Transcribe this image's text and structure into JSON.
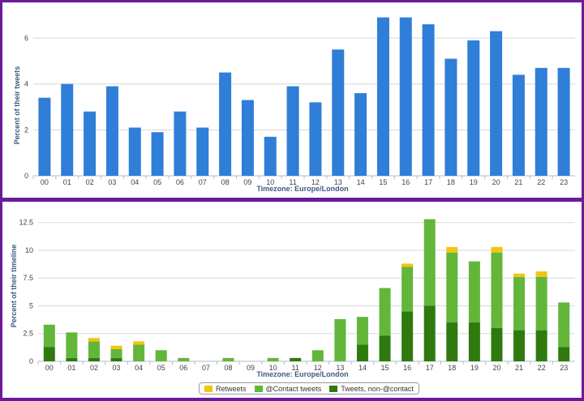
{
  "chart_data": [
    {
      "type": "bar",
      "ylabel": "Percent of their tweets",
      "xlabel": "Timezone: Europe/London",
      "categories": [
        "00",
        "01",
        "02",
        "03",
        "04",
        "05",
        "06",
        "07",
        "08",
        "09",
        "10",
        "11",
        "12",
        "13",
        "14",
        "15",
        "16",
        "17",
        "18",
        "19",
        "20",
        "21",
        "22",
        "23"
      ],
      "values": [
        3.4,
        4.0,
        2.8,
        3.9,
        2.1,
        1.9,
        2.8,
        2.1,
        4.5,
        3.3,
        1.7,
        3.9,
        3.2,
        5.5,
        3.6,
        6.9,
        6.9,
        6.6,
        5.1,
        5.9,
        6.3,
        4.4,
        4.7,
        4.7
      ],
      "ylim": [
        0,
        7.2
      ],
      "yticks": [
        0,
        2,
        4,
        6
      ],
      "color": "#2f7ed8",
      "grid": true
    },
    {
      "type": "bar",
      "stacked": true,
      "ylabel": "Percent of their timeline",
      "xlabel": "Timezone: Europe/London",
      "categories": [
        "00",
        "01",
        "02",
        "03",
        "04",
        "05",
        "06",
        "07",
        "08",
        "09",
        "10",
        "11",
        "12",
        "13",
        "14",
        "15",
        "16",
        "17",
        "18",
        "19",
        "20",
        "21",
        "22",
        "23"
      ],
      "series": [
        {
          "name": "Tweets, non-@contact",
          "color": "#2e7a0f",
          "values": [
            1.3,
            0.3,
            0.3,
            0.3,
            0,
            0,
            0,
            0,
            0,
            0,
            0,
            0.3,
            0,
            0,
            1.5,
            2.3,
            4.5,
            5.0,
            3.5,
            3.5,
            3.0,
            2.8,
            2.8,
            1.3
          ]
        },
        {
          "name": "@Contact tweets",
          "color": "#62b63a",
          "values": [
            2.0,
            2.3,
            1.5,
            0.8,
            1.5,
            1.0,
            0.3,
            0,
            0.3,
            0,
            0.3,
            0,
            1.0,
            3.8,
            2.5,
            4.3,
            4.0,
            7.8,
            6.3,
            5.5,
            6.8,
            4.8,
            4.8,
            4.0
          ]
        },
        {
          "name": "Retweets",
          "color": "#f2c511",
          "values": [
            0,
            0,
            0.3,
            0.3,
            0.3,
            0,
            0,
            0,
            0,
            0,
            0,
            0,
            0,
            0,
            0,
            0,
            0.3,
            0,
            0.5,
            0,
            0.5,
            0.3,
            0.5,
            0
          ]
        }
      ],
      "ylim": [
        0,
        13.5
      ],
      "yticks": [
        0,
        2.5,
        5,
        7.5,
        10,
        12.5
      ],
      "ytick_labels": [
        "0",
        "2.5",
        "5",
        "7.5",
        "10",
        "12.5"
      ],
      "legend_order": [
        "Retweets",
        "@Contact tweets",
        "Tweets, non-@contact"
      ],
      "legend_position": "bottom-center",
      "grid": true
    }
  ]
}
